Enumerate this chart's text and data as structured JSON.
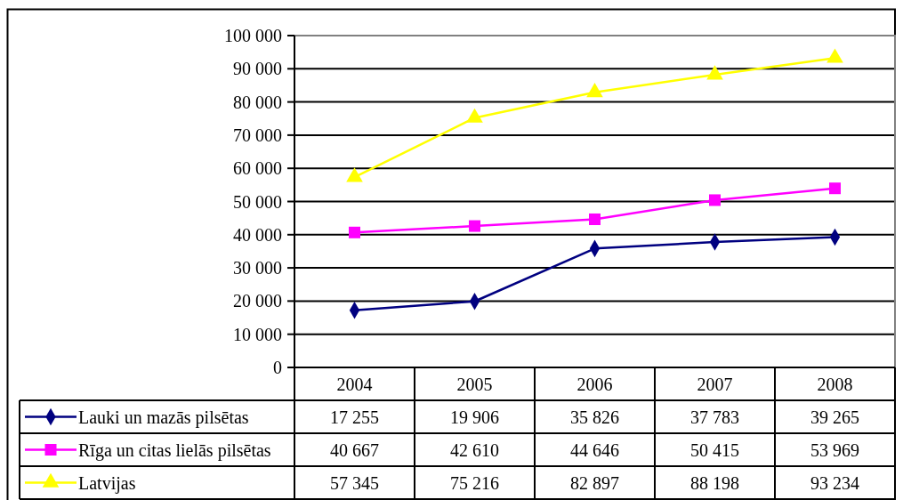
{
  "chart_data": {
    "type": "line",
    "categories": [
      "2004",
      "2005",
      "2006",
      "2007",
      "2008"
    ],
    "ylim": [
      0,
      100000
    ],
    "yticks": [
      0,
      {
        "value": 10000,
        "label": "10 000"
      },
      {
        "value": 20000,
        "label": "20 000"
      },
      {
        "value": 30000,
        "label": "30 000"
      },
      {
        "value": 40000,
        "label": "40 000"
      },
      {
        "value": 50000,
        "label": "50 000"
      },
      {
        "value": 60000,
        "label": "60 000"
      },
      {
        "value": 70000,
        "label": "70 000"
      },
      {
        "value": 80000,
        "label": "80 000"
      },
      {
        "value": 90000,
        "label": "90 000"
      },
      {
        "value": 100000,
        "label": "100 000"
      }
    ],
    "grid": "y",
    "legend": "bottom",
    "series": [
      {
        "name": "Lauki un mazās pilsētas",
        "color": "#000080",
        "marker": "diamond",
        "values": [
          17255,
          19906,
          35826,
          37783,
          39265
        ],
        "value_labels": [
          "17 255",
          "19 906",
          "35 826",
          "37 783",
          "39 265"
        ]
      },
      {
        "name": "Rīga un citas lielās pilsētas",
        "color": "#ff00ff",
        "marker": "square",
        "values": [
          40667,
          42610,
          44646,
          50415,
          53969
        ],
        "value_labels": [
          "40 667",
          "42 610",
          "44 646",
          "50 415",
          "53 969"
        ]
      },
      {
        "name": "Latvijas",
        "color": "#ffff00",
        "marker": "triangle",
        "values": [
          57345,
          75216,
          82897,
          88198,
          93234
        ],
        "value_labels": [
          "57 345",
          "75 216",
          "82 897",
          "88 198",
          "93 234"
        ]
      }
    ]
  }
}
